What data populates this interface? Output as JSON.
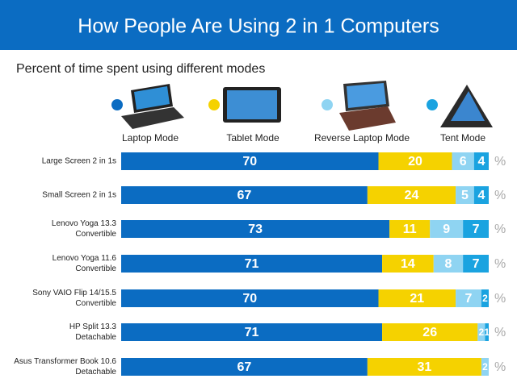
{
  "chart_data": {
    "type": "stacked-bar-horizontal",
    "title": "How People Are Using 2 in 1 Computers",
    "subtitle": "Percent of time spent using different modes",
    "unit": "%",
    "categories": [
      "Large Screen 2 in 1s",
      "Small Screen 2 in 1s",
      "Lenovo Yoga 13.3\nConvertible",
      "Lenovo Yoga 11.6\nConvertible",
      "Sony VAIO Flip 14/15.5\nConvertible",
      "HP Split 13.3\nDetachable",
      "Asus Transformer Book 10.6\nDetachable"
    ],
    "series": [
      {
        "name": "Laptop Mode",
        "color": "#0b6cc2",
        "values": [
          70,
          67,
          73,
          71,
          70,
          71,
          67
        ]
      },
      {
        "name": "Tablet Mode",
        "color": "#f5d200",
        "values": [
          20,
          24,
          11,
          14,
          21,
          26,
          31
        ]
      },
      {
        "name": "Reverse Laptop Mode",
        "color": "#8fd4f2",
        "values": [
          6,
          5,
          9,
          8,
          7,
          2,
          2
        ]
      },
      {
        "name": "Tent Mode",
        "color": "#1aa3e0",
        "values": [
          4,
          4,
          7,
          7,
          2,
          1,
          0
        ]
      }
    ]
  }
}
